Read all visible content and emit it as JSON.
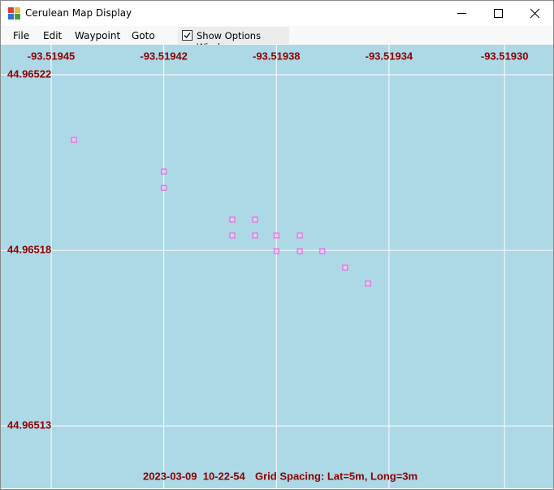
{
  "window": {
    "title": "Cerulean Map Display"
  },
  "menu": {
    "items": [
      "File",
      "Edit",
      "Waypoint",
      "Goto"
    ],
    "checkbox": {
      "label": "Show Options Window",
      "checked": true
    }
  },
  "map": {
    "xlim": [
      -93.519471,
      -93.5192846
    ],
    "ylim": [
      44.965116,
      44.9652297
    ],
    "xticks": [
      {
        "value": -93.519454,
        "label": "-93.51945"
      },
      {
        "value": -93.519416,
        "label": "-93.51942"
      },
      {
        "value": -93.519378,
        "label": "-93.51938"
      },
      {
        "value": -93.51934,
        "label": "-93.51934"
      },
      {
        "value": -93.519301,
        "label": "-93.51930"
      }
    ],
    "yticks": [
      {
        "value": 44.965222,
        "label": "44.96522"
      },
      {
        "value": 44.965177,
        "label": "44.96518"
      },
      {
        "value": 44.965132,
        "label": "44.96513"
      }
    ],
    "grid": true,
    "point_color": "#e070e0",
    "points": [
      {
        "lon": -93.5194463,
        "lat": 44.9652053
      },
      {
        "lon": -93.519416,
        "lat": 44.9651972
      },
      {
        "lon": -93.519416,
        "lat": 44.965193
      },
      {
        "lon": -93.5193929,
        "lat": 44.9651849
      },
      {
        "lon": -93.5193852,
        "lat": 44.9651849
      },
      {
        "lon": -93.5193929,
        "lat": 44.9651808
      },
      {
        "lon": -93.5193852,
        "lat": 44.9651808
      },
      {
        "lon": -93.519378,
        "lat": 44.9651808
      },
      {
        "lon": -93.5193701,
        "lat": 44.9651808
      },
      {
        "lon": -93.519378,
        "lat": 44.9651768
      },
      {
        "lon": -93.5193701,
        "lat": 44.9651768
      },
      {
        "lon": -93.5193625,
        "lat": 44.9651768
      },
      {
        "lon": -93.5193548,
        "lat": 44.9651726
      },
      {
        "lon": -93.5193471,
        "lat": 44.9651685
      }
    ],
    "timestamp": "2023-03-09  10-22-54",
    "grid_spacing": "Grid Spacing: Lat=5m, Long=3m"
  }
}
